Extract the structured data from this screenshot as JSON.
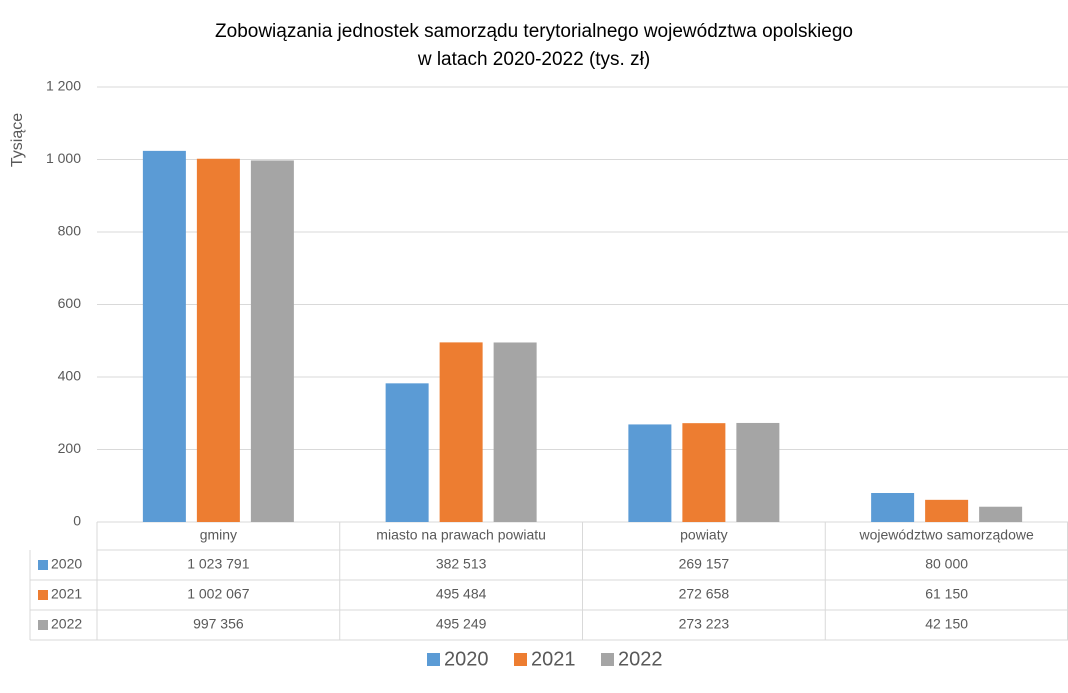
{
  "chart_data": {
    "type": "bar",
    "title": [
      "Zobowiązania jednostek samorządu terytorialnego województwa opolskiego",
      "w latach 2020-2022 (tys. zł)"
    ],
    "y_axis_label": "Tysiące",
    "categories": [
      "gminy",
      "miasto na prawach powiatu",
      "powiaty",
      "województwo samorządowe"
    ],
    "series": [
      {
        "name": "2020",
        "color": "#5b9bd5",
        "values": [
          1023791,
          382513,
          269157,
          80000
        ],
        "value_labels": [
          "1 023 791",
          "382 513",
          "269 157",
          "80 000"
        ]
      },
      {
        "name": "2021",
        "color": "#ed7d31",
        "values": [
          1002067,
          495484,
          272658,
          61150
        ],
        "value_labels": [
          "1 002 067",
          "495 484",
          "272 658",
          "61 150"
        ]
      },
      {
        "name": "2022",
        "color": "#a5a5a5",
        "values": [
          997356,
          495249,
          273223,
          42150
        ],
        "value_labels": [
          "997 356",
          "495 249",
          "273 223",
          "42 150"
        ]
      }
    ],
    "ylim": [
      0,
      1200000
    ],
    "yticks": [
      0,
      {
        "value": 200000,
        "label": "200"
      },
      {
        "value": 400000,
        "label": "400"
      },
      {
        "value": 600000,
        "label": "600"
      },
      {
        "value": 800000,
        "label": "800"
      },
      {
        "value": 1000000,
        "label": "1 000"
      },
      {
        "value": 1200000,
        "label": "1 200"
      }
    ],
    "grid": true
  }
}
